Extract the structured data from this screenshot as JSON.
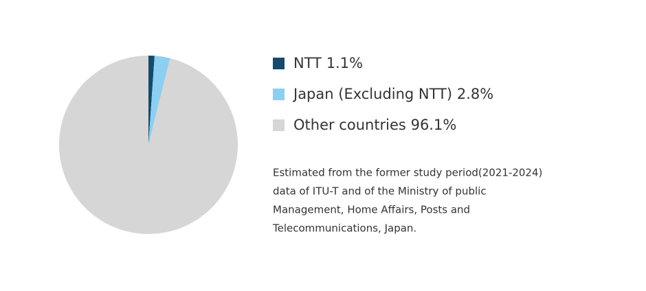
{
  "chart_data": {
    "type": "pie",
    "categories": [
      "NTT",
      "Japan (Excluding NTT)",
      "Other countries"
    ],
    "values": [
      1.1,
      2.8,
      96.1
    ],
    "value_labels": [
      "1.1%",
      "2.8%",
      "96.1%"
    ],
    "colors": [
      "#154a6b",
      "#8dcff0",
      "#d6d6d6"
    ],
    "annotations": [
      "Estimated from the former study period(2021-2024)",
      "data of ITU-T and of the Ministry of public",
      "Management, Home Affairs, Posts and",
      "Telecommunications, Japan."
    ]
  }
}
